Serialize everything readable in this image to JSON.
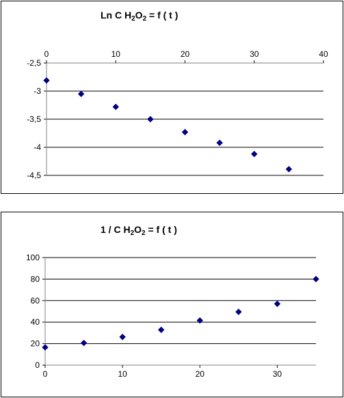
{
  "chart_data": [
    {
      "type": "scatter",
      "title_main": "Ln C H",
      "title_sub1": "2",
      "title_mid": "O",
      "title_sub2": "2",
      "title_end": " = f ( t )",
      "x_axis_position": "top",
      "xlim": [
        0,
        40
      ],
      "ylim": [
        -4.5,
        -2.5
      ],
      "x_ticks": [
        "0",
        "10",
        "20",
        "30",
        "40"
      ],
      "y_ticks": [
        "-2,5",
        "-3",
        "-3,5",
        "-4",
        "-4,5"
      ],
      "grid": true,
      "marker_color": "#000080",
      "x": [
        0,
        5,
        10,
        15,
        20,
        25,
        30,
        35
      ],
      "y": [
        -2.81,
        -3.05,
        -3.28,
        -3.5,
        -3.73,
        -3.92,
        -4.12,
        -4.39
      ]
    },
    {
      "type": "scatter",
      "title_main": "1 / C H",
      "title_sub1": "2",
      "title_mid": "O",
      "title_sub2": "2",
      "title_end": " = f ( t )",
      "x_axis_position": "bottom",
      "xlim": [
        0,
        35
      ],
      "ylim": [
        0,
        100
      ],
      "x_ticks": [
        "0",
        "10",
        "20",
        "30"
      ],
      "y_ticks": [
        "100",
        "80",
        "60",
        "40",
        "20",
        "0"
      ],
      "grid": true,
      "marker_color": "#000080",
      "x": [
        0,
        5,
        10,
        15,
        20,
        25,
        30,
        35
      ],
      "y": [
        16.5,
        20.6,
        26.2,
        32.8,
        41.5,
        49.5,
        57,
        80
      ]
    }
  ]
}
